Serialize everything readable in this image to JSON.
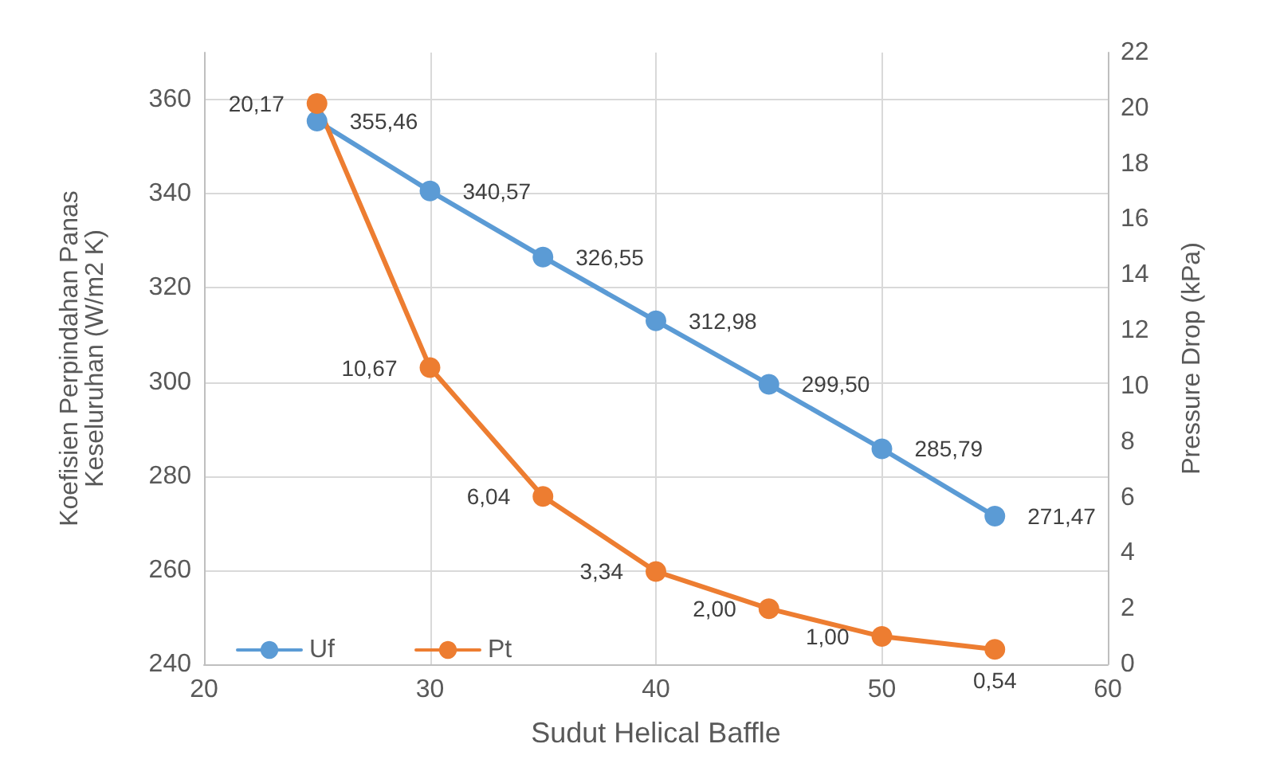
{
  "chart_data": {
    "type": "line",
    "xlabel": "Sudut Helical Baffle",
    "ylabel": "Koefisien Perpindahan Panas\nKeseluruhan (W/m2 K)",
    "y2label": "Pressure Drop (kPa)",
    "x": [
      25,
      30,
      35,
      40,
      45,
      50,
      55
    ],
    "series": [
      {
        "name": "Uf",
        "color": "#5b9bd5",
        "values": [
          355.46,
          340.57,
          326.55,
          312.98,
          299.5,
          285.79,
          271.47
        ],
        "value_labels": [
          "355,46",
          "340,57",
          "326,55",
          "312,98",
          "299,50",
          "285,79",
          "271,47"
        ]
      },
      {
        "name": "Pt",
        "color": "#ed7d31",
        "axis": "y2",
        "values": [
          20.17,
          10.67,
          6.04,
          3.34,
          2.0,
          1.0,
          0.54
        ],
        "value_labels": [
          "20,17",
          "10,67",
          "6,04",
          "3,34",
          "2,00",
          "1,00",
          "0,54"
        ]
      }
    ],
    "xlim": [
      20,
      60
    ],
    "xticks": [
      20,
      30,
      40,
      50,
      60
    ],
    "ylim": [
      240,
      370
    ],
    "yticks": [
      240,
      260,
      280,
      300,
      320,
      340,
      360
    ],
    "y2lim": [
      0,
      22
    ],
    "y2ticks": [
      0,
      2,
      4,
      6,
      8,
      10,
      12,
      14,
      16,
      18,
      20,
      22
    ],
    "grid": true,
    "legend": "bottom left",
    "marker": "circle",
    "line_style": "solid"
  }
}
